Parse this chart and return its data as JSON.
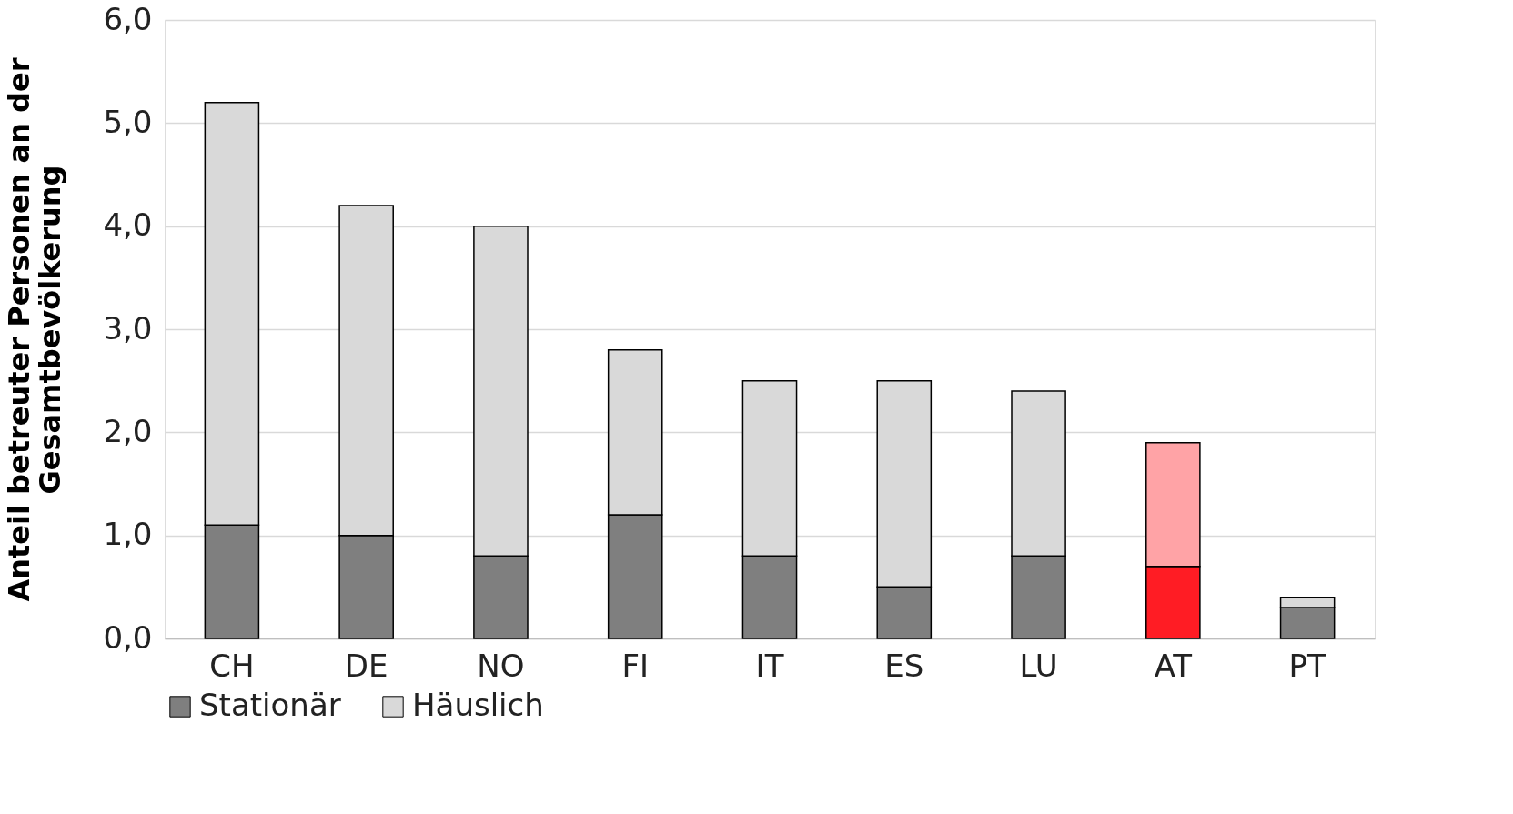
{
  "chart_data": {
    "type": "bar",
    "stacked": true,
    "ylabel": "Anteil betreuter Personen an der\nGesamtbevölkerung",
    "categories": [
      "CH",
      "DE",
      "NO",
      "FI",
      "IT",
      "ES",
      "LU",
      "AT",
      "PT"
    ],
    "series": [
      {
        "name": "Stationär",
        "color": "#7f7f7f",
        "colors": [
          "#7f7f7f",
          "#7f7f7f",
          "#7f7f7f",
          "#7f7f7f",
          "#7f7f7f",
          "#7f7f7f",
          "#7f7f7f",
          "#ff1c24",
          "#7f7f7f"
        ],
        "values": [
          1.1,
          1.0,
          0.8,
          1.2,
          0.8,
          0.5,
          0.8,
          0.7,
          0.3
        ]
      },
      {
        "name": "Häuslich",
        "color": "#d9d9d9",
        "colors": [
          "#d9d9d9",
          "#d9d9d9",
          "#d9d9d9",
          "#d9d9d9",
          "#d9d9d9",
          "#d9d9d9",
          "#d9d9d9",
          "#ffa3a6",
          "#d9d9d9"
        ],
        "values": [
          4.1,
          3.2,
          3.2,
          1.6,
          1.7,
          2.0,
          1.6,
          1.2,
          0.1
        ]
      }
    ],
    "ylim": [
      0,
      6
    ],
    "yticks": [
      {
        "value": 0,
        "label": "0,0"
      },
      {
        "value": 1,
        "label": "1,0"
      },
      {
        "value": 2,
        "label": "2,0"
      },
      {
        "value": 3,
        "label": "3,0"
      },
      {
        "value": 4,
        "label": "4,0"
      },
      {
        "value": 5,
        "label": "5,0"
      },
      {
        "value": 6,
        "label": "6,0"
      }
    ],
    "grid": "y",
    "legend": "bottom"
  }
}
